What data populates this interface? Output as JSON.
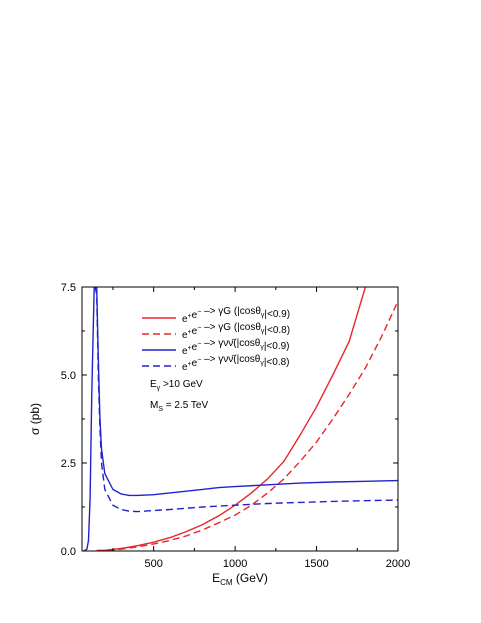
{
  "chart_data": {
    "type": "line",
    "xlabel": "E",
    "xlabel_sub": "CM",
    "xlabel_unit": "(GeV)",
    "ylabel": "σ   (pb)",
    "xlim": [
      60,
      2000
    ],
    "ylim": [
      0,
      7.5
    ],
    "x_ticks": [
      500,
      1000,
      1500,
      2000
    ],
    "x_tick_labels": [
      "500",
      "1000",
      "1500",
      "2000"
    ],
    "y_ticks": [
      0,
      2.5,
      5.0,
      7.5
    ],
    "y_tick_labels": [
      "0.0",
      "2.5",
      "5.0",
      "7.5"
    ],
    "grid": false,
    "legend_position": "top-left",
    "annotations": [
      {
        "text": "E",
        "sub": "γ",
        "tail": " >10 GeV"
      },
      {
        "text": "M",
        "sub": "S",
        "tail": " = 2.5 TeV"
      }
    ],
    "series": [
      {
        "name": "e⁺e⁻ –> γG (|cosθγ|<0.9)",
        "legend": {
          "pre": "e",
          "sup1": "+",
          "mid": "e",
          "sup2": "−",
          "proc": " –> γG (|cosθ",
          "sub": "γ",
          "cut": "|<0.9)"
        },
        "color": "#e8262b",
        "dash": "solid",
        "x": [
          150,
          200,
          300,
          400,
          500,
          600,
          700,
          800,
          900,
          1000,
          1100,
          1200,
          1300,
          1400,
          1500,
          1600,
          1700,
          1800
        ],
        "y": [
          0.01,
          0.02,
          0.07,
          0.15,
          0.25,
          0.38,
          0.55,
          0.75,
          1.0,
          1.3,
          1.65,
          2.05,
          2.55,
          3.3,
          4.1,
          5.0,
          5.95,
          7.5
        ]
      },
      {
        "name": "e⁺e⁻ –> γG (|cosθγ|<0.8)",
        "legend": {
          "pre": "e",
          "sup1": "+",
          "mid": "e",
          "sup2": "−",
          "proc": " –> γG (|cosθ",
          "sub": "γ",
          "cut": "|<0.8)"
        },
        "color": "#e8262b",
        "dash": "dashed",
        "x": [
          150,
          200,
          300,
          400,
          500,
          600,
          700,
          800,
          900,
          1000,
          1100,
          1200,
          1300,
          1400,
          1500,
          1600,
          1700,
          1800,
          1900,
          2000
        ],
        "y": [
          0.01,
          0.02,
          0.05,
          0.12,
          0.2,
          0.3,
          0.43,
          0.6,
          0.8,
          1.02,
          1.3,
          1.65,
          2.05,
          2.55,
          3.1,
          3.75,
          4.45,
          5.2,
          6.1,
          7.1
        ]
      },
      {
        "name": "e⁺e⁻ –> γνν̄(|cosθγ|<0.9)",
        "legend": {
          "pre": "e",
          "sup1": "+",
          "mid": "e",
          "sup2": "−",
          "proc": " –> γνν̄(|cosθ",
          "sub": "γ",
          "cut": "|<0.9)"
        },
        "color": "#2222cc",
        "dash": "solid",
        "x": [
          70,
          90,
          100,
          110,
          120,
          135,
          150,
          160,
          170,
          180,
          200,
          250,
          300,
          350,
          400,
          500,
          600,
          700,
          800,
          900,
          1000,
          1200,
          1400,
          1600,
          1800,
          2000
        ],
        "y": [
          0.0,
          0.05,
          0.3,
          1.5,
          4.5,
          7.5,
          7.5,
          5.5,
          3.8,
          2.9,
          2.2,
          1.75,
          1.62,
          1.58,
          1.58,
          1.6,
          1.65,
          1.7,
          1.75,
          1.8,
          1.83,
          1.88,
          1.93,
          1.96,
          1.98,
          2.0
        ]
      },
      {
        "name": "e⁺e⁻ –> γνν̄(|cosθγ|<0.8)",
        "legend": {
          "pre": "e",
          "sup1": "+",
          "mid": "e",
          "sup2": "−",
          "proc": " –> γνν̄(|cosθ",
          "sub": "γ",
          "cut": "|<0.8)"
        },
        "color": "#2222cc",
        "dash": "dashed",
        "x": [
          140,
          150,
          160,
          170,
          180,
          200,
          250,
          300,
          350,
          400,
          500,
          600,
          800,
          1000,
          1200,
          1400,
          1600,
          1800,
          2000
        ],
        "y": [
          7.5,
          7.3,
          5.0,
          3.5,
          2.5,
          1.75,
          1.3,
          1.18,
          1.13,
          1.12,
          1.15,
          1.18,
          1.25,
          1.3,
          1.35,
          1.38,
          1.41,
          1.43,
          1.45
        ]
      }
    ]
  }
}
